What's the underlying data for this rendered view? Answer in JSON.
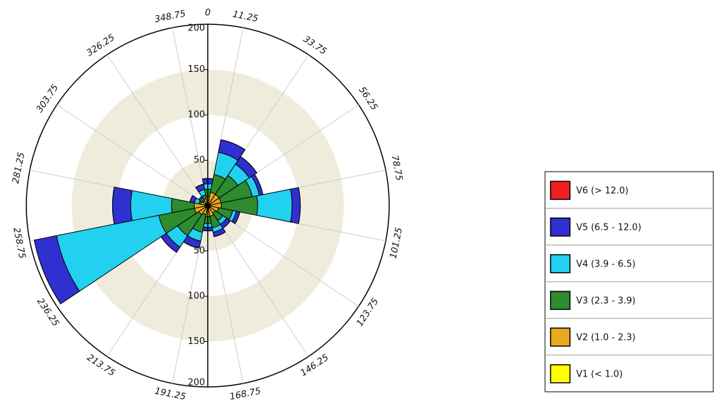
{
  "chart_data": {
    "type": "windrose",
    "x": [
      0,
      22.5,
      45,
      67.5,
      90,
      112.5,
      135,
      157.5,
      180,
      202.5,
      225,
      247.5,
      270,
      292.5,
      315,
      337.5
    ],
    "series": [
      {
        "name": "V1 (< 1.0)",
        "color": "#ffff00",
        "values": [
          2,
          2,
          2,
          2,
          2,
          2,
          2,
          2,
          2,
          2,
          2,
          2,
          2,
          2,
          2,
          2
        ]
      },
      {
        "name": "V2 (1.0 - 2.3)",
        "color": "#e8a820",
        "values": [
          8,
          13,
          13,
          13,
          13,
          10,
          8,
          10,
          10,
          8,
          10,
          13,
          13,
          6,
          4,
          6
        ]
      },
      {
        "name": "V3 (2.3 - 3.9)",
        "color": "#2e8b2e",
        "values": [
          8,
          20,
          25,
          35,
          40,
          16,
          10,
          13,
          8,
          20,
          28,
          40,
          25,
          2,
          2,
          4
        ]
      },
      {
        "name": "V4 (3.9 - 6.5)",
        "color": "#22d0f0",
        "values": [
          6,
          25,
          15,
          8,
          38,
          4,
          5,
          5,
          4,
          10,
          15,
          115,
          45,
          5,
          2,
          6
        ]
      },
      {
        "name": "V5 (6.5 - 12.0)",
        "color": "#3030d0",
        "values": [
          6,
          14,
          10,
          4,
          9,
          4,
          5,
          5,
          4,
          8,
          7,
          25,
          20,
          5,
          2,
          6
        ]
      },
      {
        "name": "V6 (> 12.0)",
        "color": "#ee2020",
        "values": [
          0,
          0,
          0,
          0,
          0,
          0,
          0,
          0,
          0,
          0,
          0,
          0,
          0,
          0,
          0,
          0
        ]
      }
    ],
    "rlim": [
      0,
      200
    ],
    "rticks": [
      50,
      100,
      150,
      200
    ],
    "angle_ticks": [
      0,
      11.25,
      33.75,
      56.25,
      78.75,
      101.25,
      123.75,
      146.25,
      168.75,
      191.25,
      213.75,
      236.25,
      258.75,
      281.25,
      303.75,
      326.25,
      348.75
    ]
  }
}
